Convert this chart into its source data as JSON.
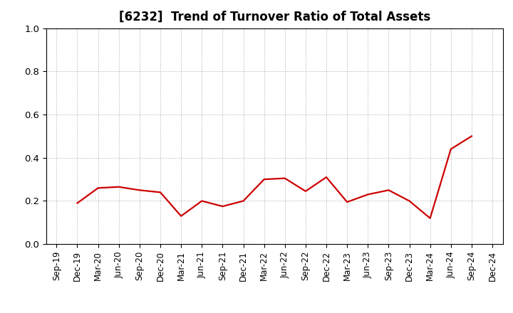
{
  "title": "[6232]  Trend of Turnover Ratio of Total Assets",
  "labels": [
    "Sep-19",
    "Dec-19",
    "Mar-20",
    "Jun-20",
    "Sep-20",
    "Dec-20",
    "Mar-21",
    "Jun-21",
    "Sep-21",
    "Dec-21",
    "Mar-22",
    "Jun-22",
    "Sep-22",
    "Dec-22",
    "Mar-23",
    "Jun-23",
    "Sep-23",
    "Dec-23",
    "Mar-24",
    "Jun-24",
    "Sep-24",
    "Dec-24"
  ],
  "values": [
    null,
    0.19,
    0.26,
    0.265,
    0.25,
    0.24,
    0.13,
    0.2,
    0.175,
    0.2,
    0.3,
    0.305,
    0.245,
    0.31,
    0.195,
    0.23,
    0.25,
    0.2,
    0.12,
    0.44,
    0.5,
    null
  ],
  "line_color": "#cc0000",
  "line_width": 1.6,
  "ylim": [
    0.0,
    1.0
  ],
  "yticks": [
    0.0,
    0.2,
    0.4,
    0.6,
    0.8,
    1.0
  ],
  "background_color": "#ffffff",
  "grid_color": "#aaaaaa",
  "spine_color": "#000000",
  "title_fontsize": 12,
  "tick_fontsize": 8.5
}
